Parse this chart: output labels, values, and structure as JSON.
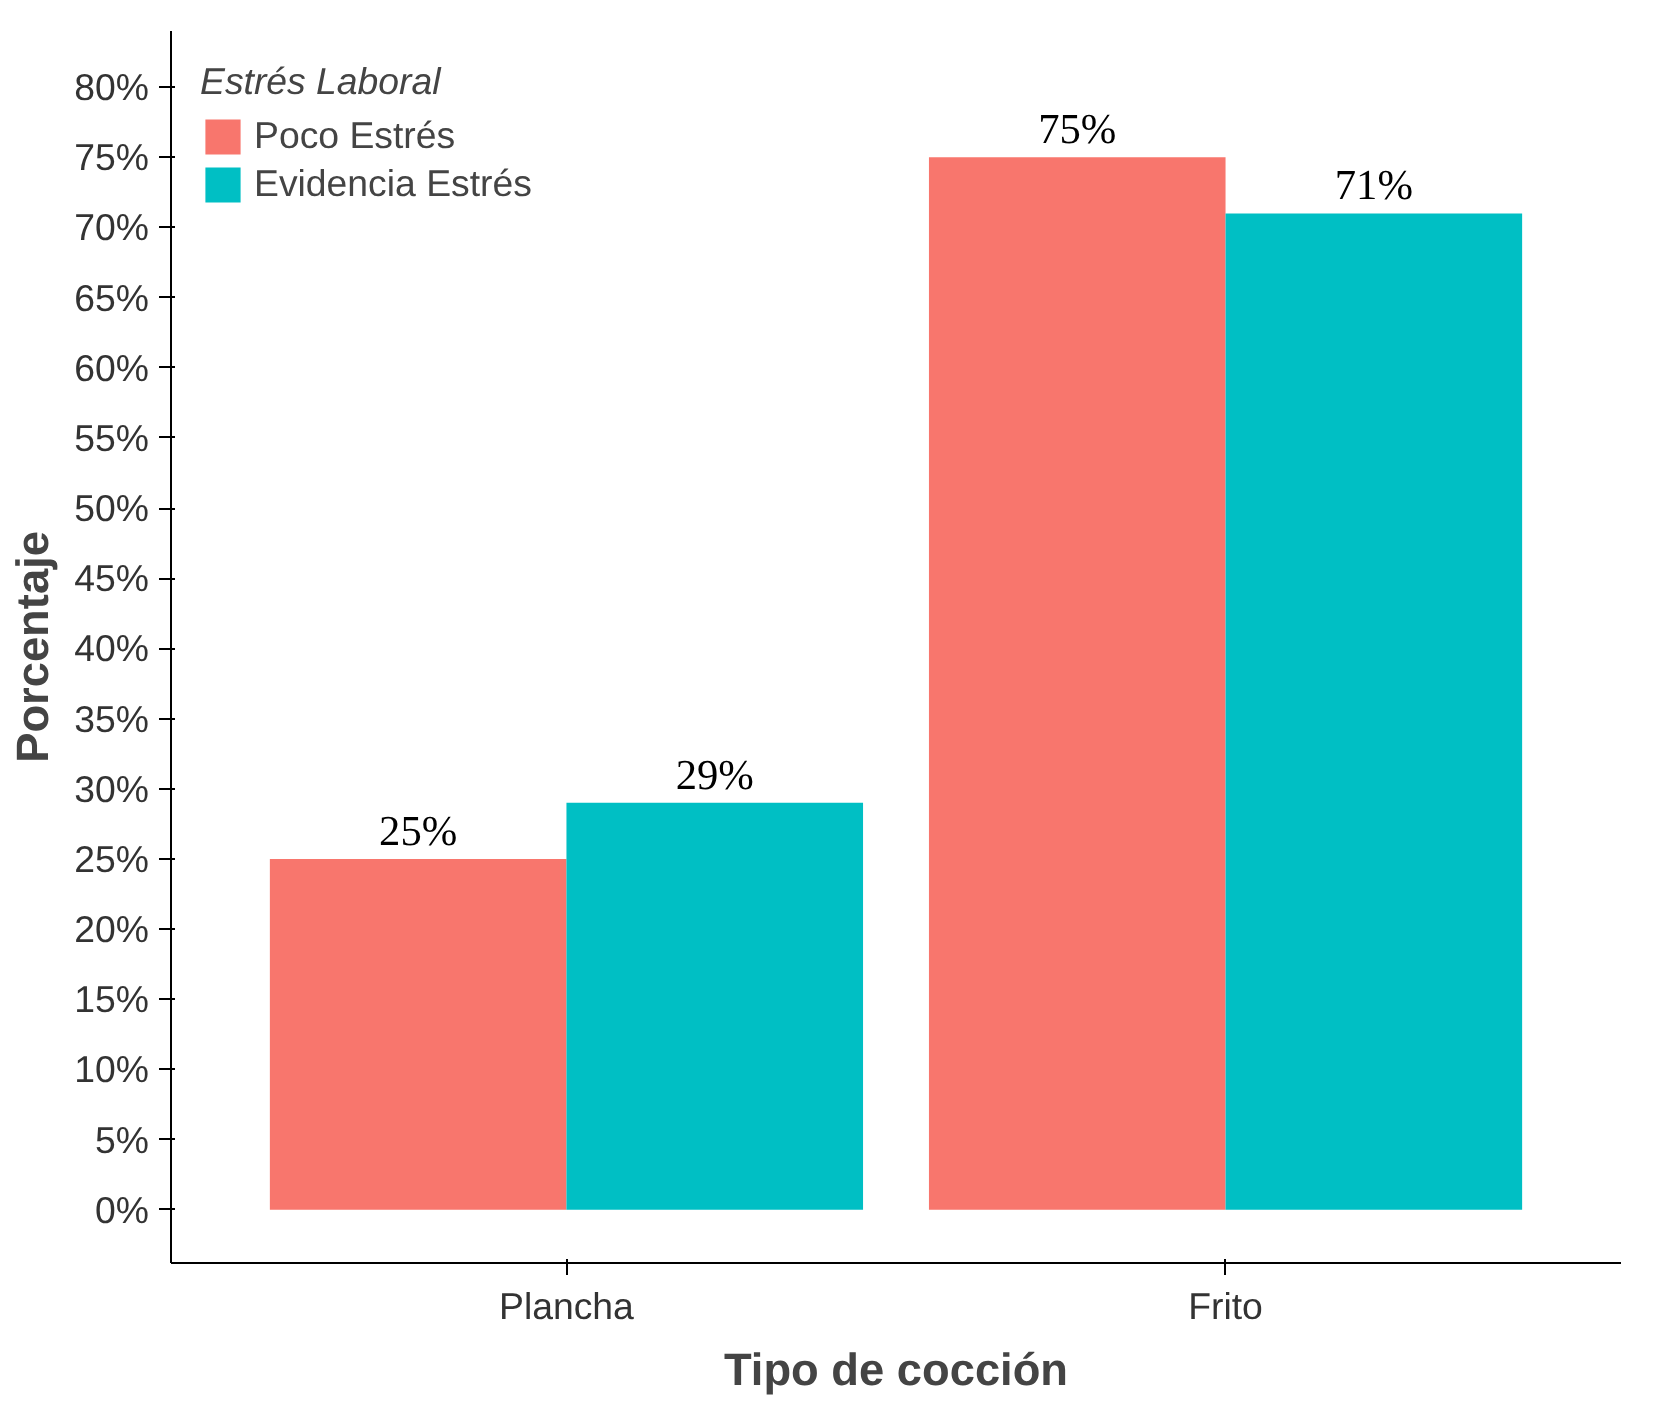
{
  "chart_data": {
    "type": "bar",
    "xlabel": "Tipo de cocción",
    "ylabel": "Porcentaje",
    "legend_title": "Estrés Laboral",
    "legend": "top left",
    "grid": false,
    "categories": [
      "Plancha",
      "Frito"
    ],
    "series": [
      {
        "name": "Poco Estrés",
        "color": "#f8766d",
        "values": [
          25,
          75
        ],
        "value_labels": [
          "25%",
          "75%"
        ]
      },
      {
        "name": "Evidencia Estrés",
        "color": "#00bfc4",
        "values": [
          29,
          71
        ],
        "value_labels": [
          "29%",
          "71%"
        ]
      }
    ],
    "ylim": [
      -3.8,
      84
    ],
    "yticks": [
      {
        "value": 0,
        "label": "0%"
      },
      {
        "value": 5,
        "label": "5%"
      },
      {
        "value": 10,
        "label": "10%"
      },
      {
        "value": 15,
        "label": "15%"
      },
      {
        "value": 20,
        "label": "20%"
      },
      {
        "value": 25,
        "label": "25%"
      },
      {
        "value": 30,
        "label": "30%"
      },
      {
        "value": 35,
        "label": "35%"
      },
      {
        "value": 40,
        "label": "40%"
      },
      {
        "value": 45,
        "label": "45%"
      },
      {
        "value": 50,
        "label": "50%"
      },
      {
        "value": 55,
        "label": "55%"
      },
      {
        "value": 60,
        "label": "60%"
      },
      {
        "value": 65,
        "label": "65%"
      },
      {
        "value": 70,
        "label": "70%"
      },
      {
        "value": 75,
        "label": "75%"
      },
      {
        "value": 80,
        "label": "80%"
      }
    ]
  }
}
